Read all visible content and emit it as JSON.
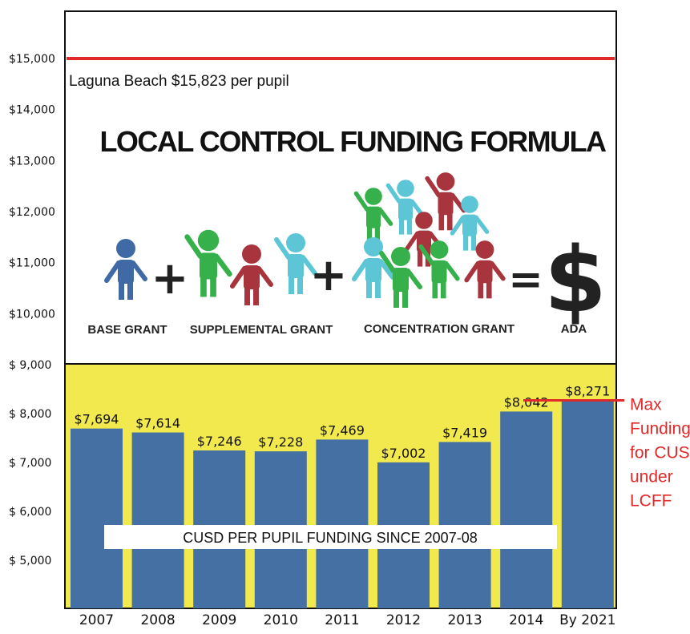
{
  "chart_data": {
    "type": "bar",
    "subtitle": "CUSD PER PUPIL FUNDING SINCE 2007-08",
    "categories": [
      "2007",
      "2008",
      "2009",
      "2010",
      "2011",
      "2012",
      "2013",
      "2014",
      "By 2021"
    ],
    "values": [
      7694,
      7614,
      7246,
      7228,
      7469,
      7002,
      7419,
      8042,
      8271
    ],
    "value_labels": [
      "$7,694",
      "$7,614",
      "$7,246",
      "$7,228",
      "$7,469",
      "$7,002",
      "$7,419",
      "$8,042",
      "$8,271"
    ],
    "y_ticks": [
      {
        "value": 5000,
        "label": "$  5,000"
      },
      {
        "value": 6000,
        "label": "$  6,000"
      },
      {
        "value": 7000,
        "label": "$  7,000"
      },
      {
        "value": 8000,
        "label": "$  8,000"
      },
      {
        "value": 9000,
        "label": "$   9,000"
      },
      {
        "value": 10000,
        "label": "$10,000"
      },
      {
        "value": 11000,
        "label": "$11,000"
      },
      {
        "value": 12000,
        "label": "$12,000"
      },
      {
        "value": 13000,
        "label": "$13,000"
      },
      {
        "value": 14000,
        "label": "$14,000"
      },
      {
        "value": 15000,
        "label": "$15,000"
      }
    ],
    "reference_line": {
      "value": 15000,
      "label": "Laguna Beach $15,823 per pupil"
    },
    "max_line": {
      "value": 8271,
      "label_lines": [
        "Max",
        "Funding",
        "for CUSD",
        "under",
        "LCFF"
      ]
    },
    "colors": {
      "bar": "#4570a4",
      "background_band": "#f2e94e",
      "reference": "#e02a2a"
    }
  },
  "formula": {
    "title": "LOCAL CONTROL FUNDING FORMULA",
    "labels": {
      "base": "BASE GRANT",
      "supplemental": "SUPPLEMENTAL GRANT",
      "concentration": "CONCENTRATION GRANT",
      "ada": "ADA"
    },
    "plus_1": "+",
    "plus_2": "+",
    "equals": "=",
    "dollar": "$",
    "colors": {
      "blue": "#3f6aa5",
      "green": "#35b04a",
      "red": "#a8343e",
      "teal": "#5cc6d6"
    }
  }
}
